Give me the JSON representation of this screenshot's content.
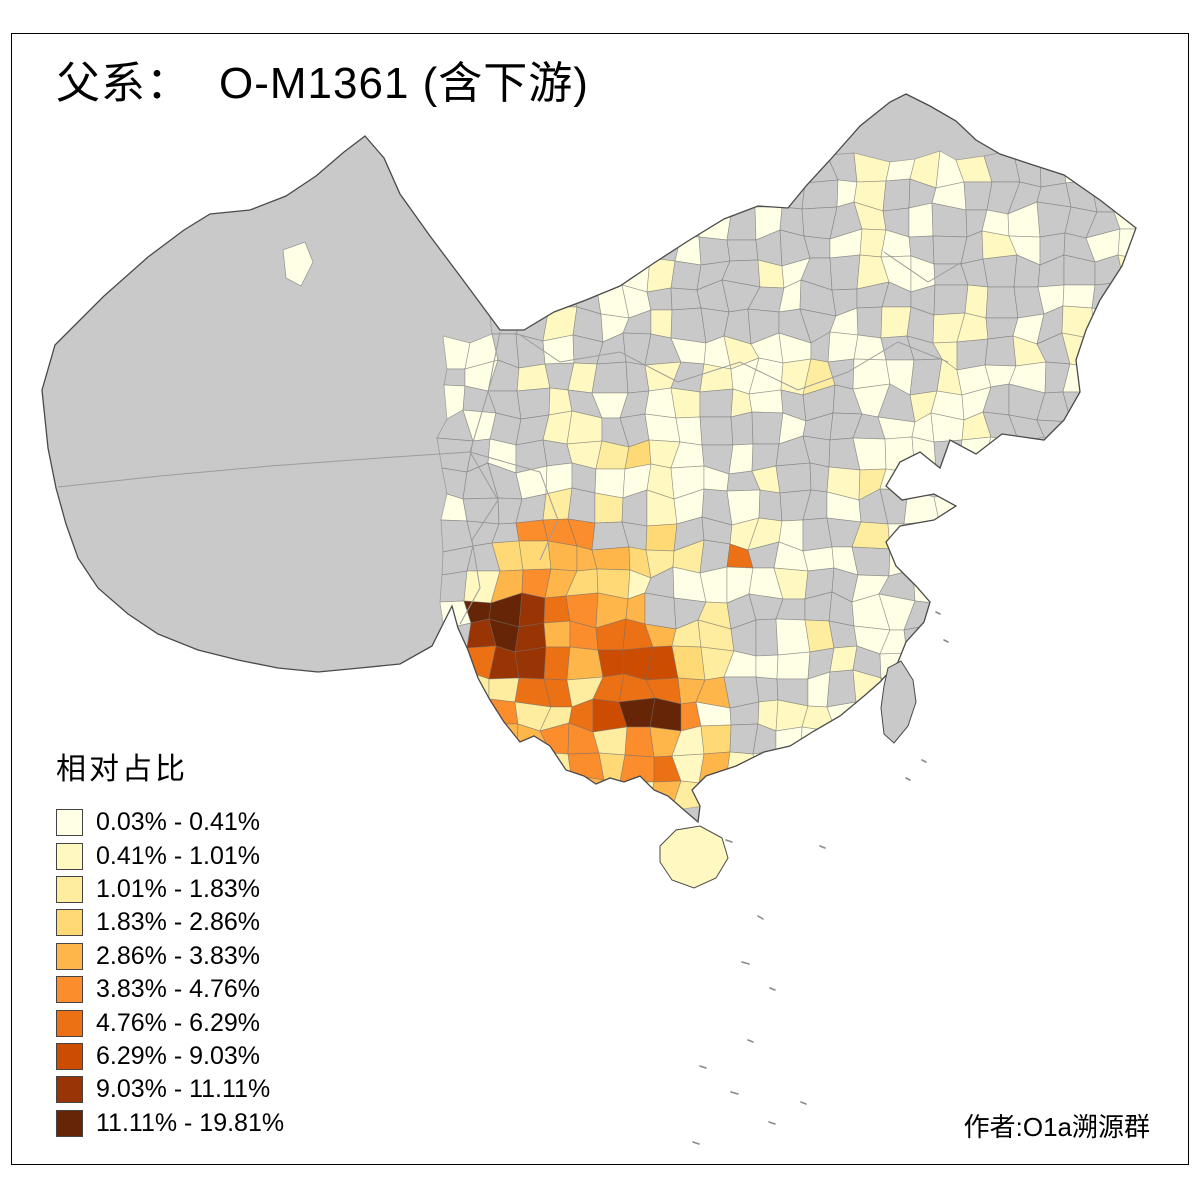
{
  "title": {
    "prefix": "父系：",
    "main": "O-M1361 (含下游)"
  },
  "legend": {
    "title": "相对占比",
    "classes": [
      {
        "label": "0.03% - 0.41%",
        "color": "#FFFFE5"
      },
      {
        "label": "0.41% - 1.01%",
        "color": "#FFF8C1"
      },
      {
        "label": "1.01% - 1.83%",
        "color": "#FEEC9F"
      },
      {
        "label": "1.83% - 2.86%",
        "color": "#FED976"
      },
      {
        "label": "2.86% - 3.83%",
        "color": "#FEB54A"
      },
      {
        "label": "3.83% - 4.76%",
        "color": "#FB8D2D"
      },
      {
        "label": "4.76% - 6.29%",
        "color": "#EC7014"
      },
      {
        "label": "6.29% - 9.03%",
        "color": "#CC4C02"
      },
      {
        "label": "9.03% - 11.11%",
        "color": "#993404"
      },
      {
        "label": "11.11% - 19.81%",
        "color": "#662506"
      }
    ]
  },
  "map": {
    "no_data_color": "#C9C9C9",
    "outline_color": "#4A4A4A",
    "internal_boundary_color": "#9C9C9C",
    "cell_boundary_color": "rgba(110,110,110,0.55)",
    "background_color": "#FFFFFF",
    "frame_color": "#000000"
  },
  "credit": "作者:O1a溯源群"
}
